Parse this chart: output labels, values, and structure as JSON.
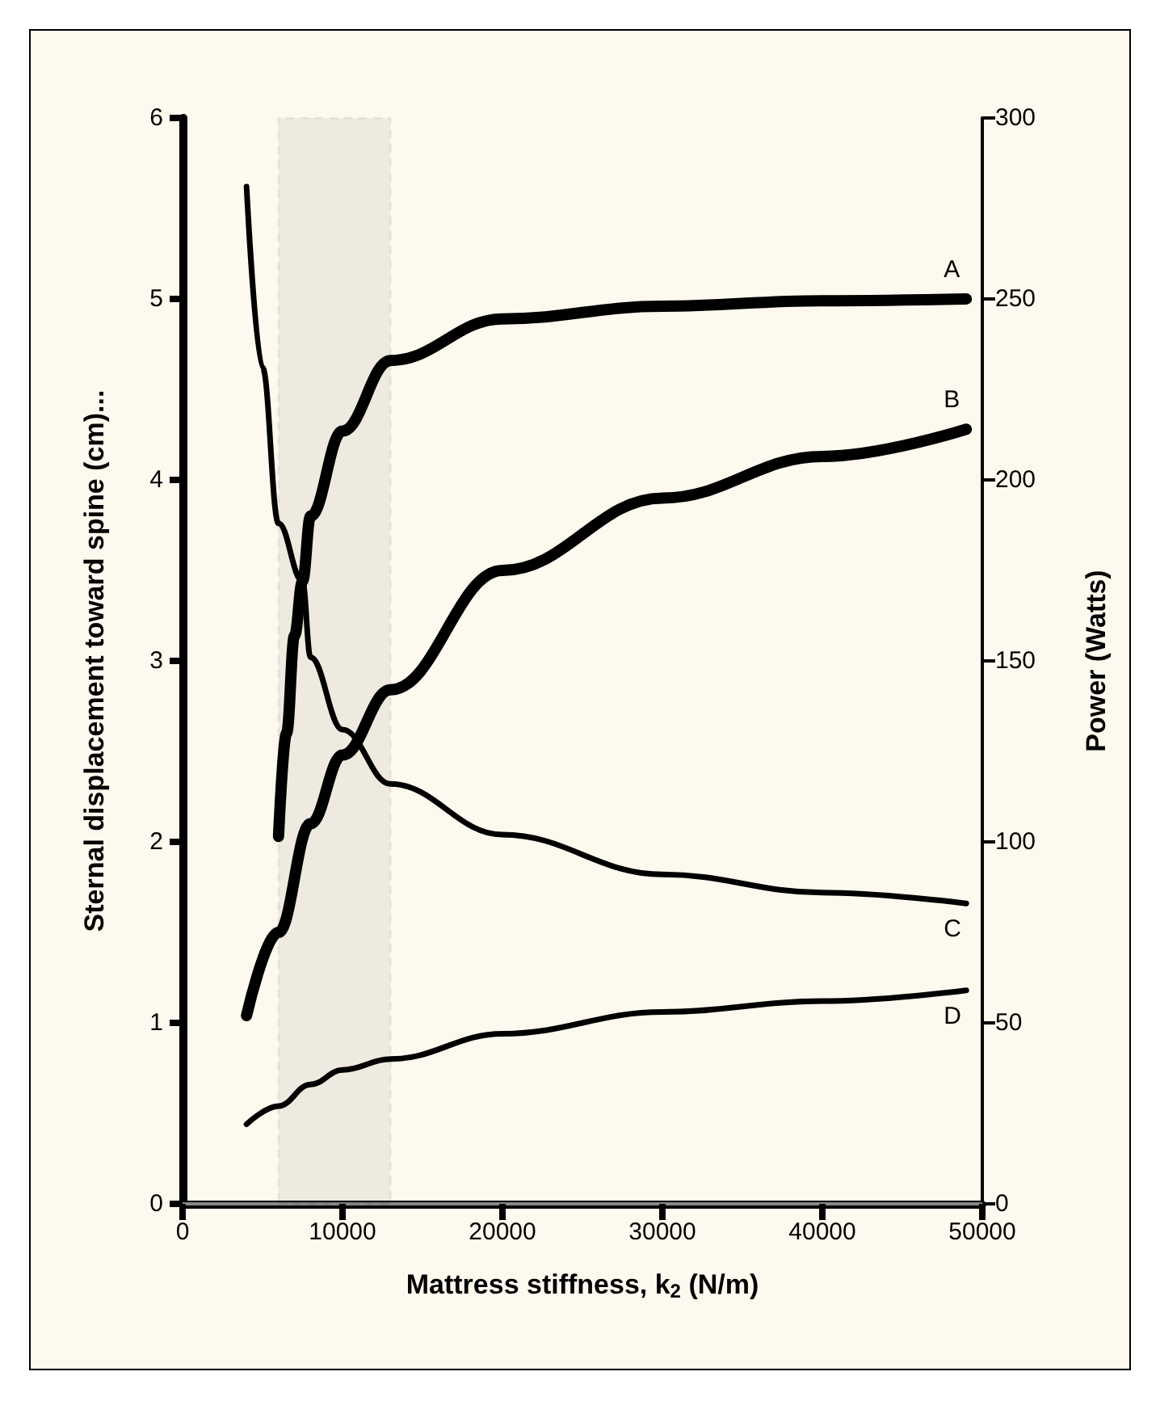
{
  "chart_data": {
    "type": "line",
    "xlabel": "Mattress stiffness, k$_{2}$ (N/m)",
    "ylabel": "Sternal displacement toward spine (cm)...",
    "y2label": "Power (Watts)",
    "xlim": [
      0,
      50000
    ],
    "xticks": [
      0,
      10000,
      20000,
      30000,
      40000,
      50000
    ],
    "ylim": [
      0,
      6
    ],
    "yticks": [
      0,
      1,
      2,
      3,
      4,
      5,
      6
    ],
    "y2lim": [
      0,
      300
    ],
    "y2ticks": [
      0,
      50,
      100,
      150,
      200,
      250,
      300
    ],
    "grid": false,
    "legend": false,
    "marker": "none",
    "line_style": "solid",
    "bands": [
      {
        "axis": "x",
        "from": 6000,
        "to": 13000,
        "color": "#000000"
      }
    ],
    "series": [
      {
        "name": "A",
        "color": "#000000",
        "x": [
          6000,
          6500,
          7000,
          7500,
          8000,
          10000,
          13000,
          20000,
          30000,
          40000,
          49000
        ],
        "values": [
          2.03,
          2.6,
          3.14,
          3.44,
          3.8,
          4.27,
          4.66,
          4.89,
          4.96,
          4.99,
          5.0
        ]
      },
      {
        "name": "B",
        "color": "#000000",
        "x": [
          4000,
          6000,
          8000,
          10000,
          13000,
          20000,
          30000,
          40000,
          49000
        ],
        "values": [
          1.04,
          1.5,
          2.1,
          2.48,
          2.84,
          3.5,
          3.9,
          4.13,
          4.28
        ]
      },
      {
        "name": "C",
        "color": "#000000",
        "axis": "y2",
        "x": [
          4000,
          5000,
          6000,
          7500,
          8000,
          10000,
          13000,
          20000,
          30000,
          40000,
          49000
        ],
        "values": [
          281,
          231,
          188,
          172,
          151,
          131,
          116,
          102,
          91,
          86,
          83
        ]
      },
      {
        "name": "D",
        "color": "#000000",
        "axis": "y2",
        "x": [
          4000,
          6000,
          8000,
          10000,
          13000,
          20000,
          30000,
          40000,
          49000
        ],
        "values": [
          22,
          27,
          33,
          37,
          40,
          47,
          53,
          56,
          59
        ]
      }
    ]
  }
}
